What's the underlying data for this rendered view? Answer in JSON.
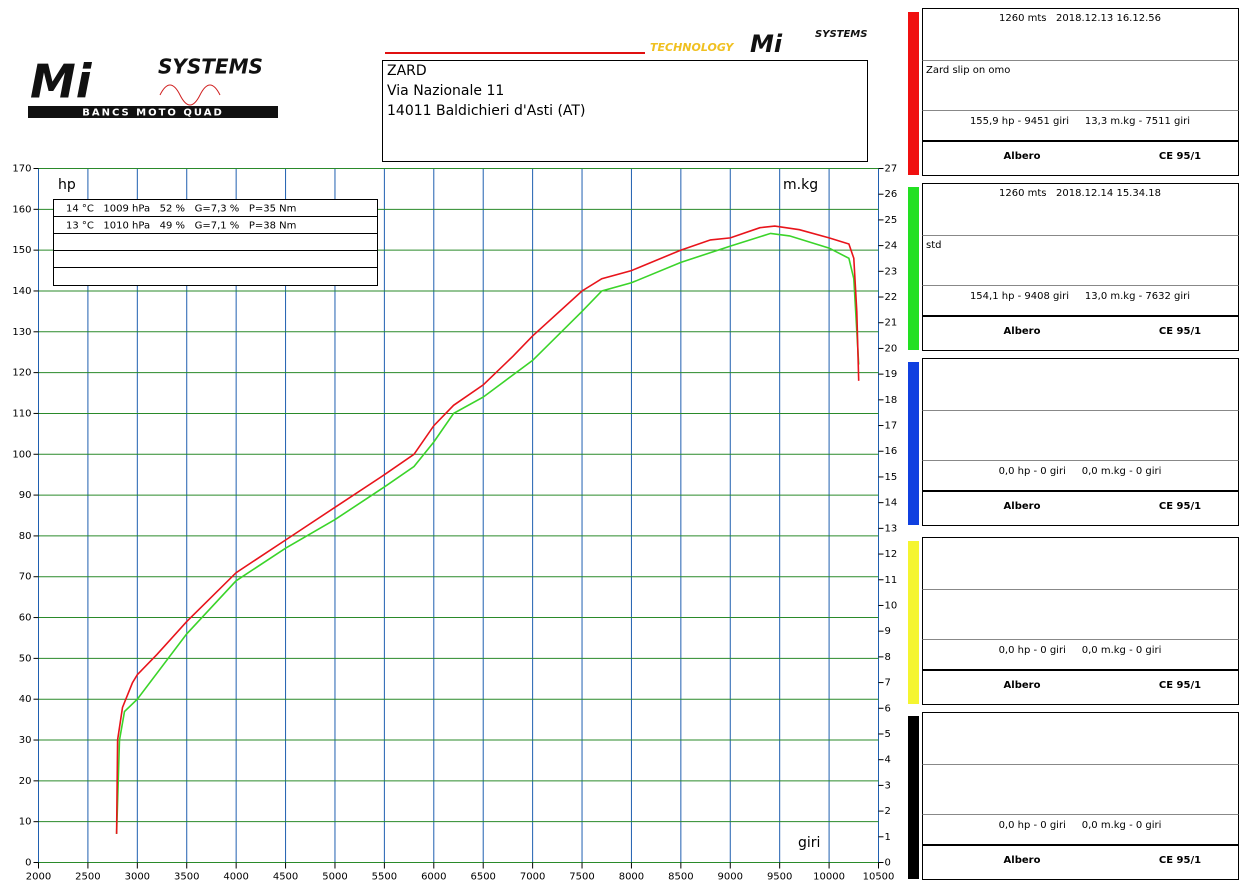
{
  "chart_data": {
    "type": "line",
    "x_unit_label": "giri",
    "y_unit_label": "hp",
    "y2_unit_label": "m.kg",
    "xlim": [
      2000,
      10500
    ],
    "xticks": [
      2000,
      2500,
      3000,
      3500,
      4000,
      4500,
      5000,
      5500,
      6000,
      6500,
      7000,
      7500,
      8000,
      8500,
      9000,
      9500,
      10000,
      10500
    ],
    "ylim": [
      0,
      170
    ],
    "yticks": [
      0,
      10,
      20,
      30,
      40,
      50,
      60,
      70,
      80,
      90,
      100,
      110,
      120,
      130,
      140,
      150,
      160,
      170
    ],
    "y2lim": [
      0,
      27
    ],
    "y2ticks": [
      0,
      1,
      2,
      3,
      4,
      5,
      6,
      7,
      8,
      9,
      10,
      11,
      12,
      13,
      14,
      15,
      16,
      17,
      18,
      19,
      20,
      21,
      22,
      23,
      24,
      25,
      26,
      27
    ],
    "grid": true,
    "xgrid_color": "#1f5fb0",
    "ygrid_color": "#2a8a2a",
    "legend_rows": [
      "14 °C   1009 hPa   52 %   G=7,3 %   P=35 Nm",
      "13 °C   1010 hPa   49 %   G=7,1 %   P=38 Nm"
    ],
    "series": [
      {
        "name": "Zard slip on omo",
        "color": "#e8141b",
        "x": [
          2790,
          2800,
          2850,
          2950,
          3000,
          3200,
          3500,
          4000,
          4500,
          5000,
          5500,
          5800,
          6000,
          6200,
          6500,
          6800,
          7000,
          7500,
          7700,
          8000,
          8500,
          8800,
          9000,
          9300,
          9451,
          9700,
          10000,
          10200,
          10250,
          10280,
          10300
        ],
        "values": [
          7,
          30,
          38,
          44,
          46,
          51,
          59,
          71,
          79,
          87,
          95,
          100,
          107,
          112,
          117,
          124,
          129,
          140,
          143,
          145,
          150,
          152.5,
          153,
          155.5,
          155.9,
          155,
          153,
          151.5,
          148,
          135,
          118
        ]
      },
      {
        "name": "std",
        "color": "#3bd42a",
        "x": [
          2790,
          2820,
          2870,
          3000,
          3500,
          4000,
          4500,
          5000,
          5500,
          5800,
          6000,
          6200,
          6500,
          7000,
          7500,
          7700,
          8000,
          8500,
          9000,
          9408,
          9600,
          10000,
          10200,
          10250,
          10300
        ],
        "values": [
          7,
          30,
          37,
          40,
          56,
          69,
          77,
          84,
          92,
          97,
          103,
          110,
          114,
          123,
          135,
          140,
          142,
          147,
          151,
          154.1,
          153.5,
          150.5,
          148,
          143,
          122
        ]
      }
    ]
  },
  "header": {
    "lines": [
      "ZARD",
      "Via Nazionale 11",
      "14011 Baldichieri d'Asti (AT)"
    ]
  },
  "logos": {
    "left_mark": "Mi",
    "left_name": "SYSTEMS",
    "left_sub": "BANCS MOTO QUAD",
    "right_tag": "TECHNOLOGY",
    "right_mark": "Mi",
    "right_name": "SYSTEMS"
  },
  "panels": [
    {
      "color": "#f01010",
      "header": "1260 mts   2018.12.13 16.12.56",
      "note": "Zard slip on omo",
      "summary": "155,9 hp - 9451 giri     13,3 m.kg - 7511 giri",
      "shaft": "Albero",
      "standard": "CE 95/1"
    },
    {
      "color": "#22e022",
      "header": "1260 mts   2018.12.14 15.34.18",
      "note": "std",
      "summary": "154,1 hp - 9408 giri     13,0 m.kg - 7632 giri",
      "shaft": "Albero",
      "standard": "CE 95/1"
    },
    {
      "color": "#1040e0",
      "summary": "0,0 hp - 0 giri     0,0 m.kg - 0 giri",
      "shaft": "Albero",
      "standard": "CE 95/1"
    },
    {
      "color": "#f5f530",
      "summary": "0,0 hp - 0 giri     0,0 m.kg - 0 giri",
      "shaft": "Albero",
      "standard": "CE 95/1"
    },
    {
      "color": "#000000",
      "summary": "0,0 hp - 0 giri     0,0 m.kg - 0 giri",
      "shaft": "Albero",
      "standard": "CE 95/1"
    }
  ]
}
